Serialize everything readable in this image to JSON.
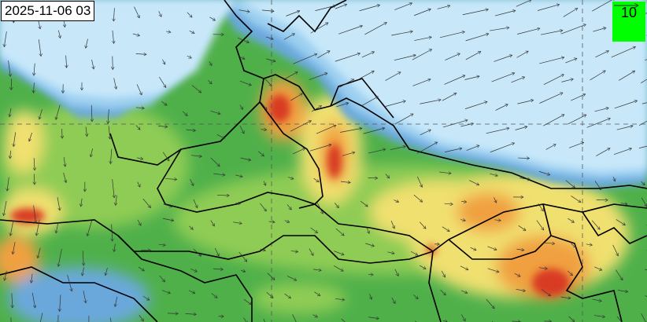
{
  "map": {
    "timestamp": "2025-11-06 03",
    "legend": {
      "reference_speed": "10",
      "color": "#00ff00"
    },
    "colors": {
      "pale_blue": "#c8e8fa",
      "light_blue": "#9ccff0",
      "mid_blue": "#6aa8dc",
      "green": "#4fb04a",
      "light_green": "#8fcc55",
      "yellow": "#f0e070",
      "orange": "#f0a040",
      "red": "#d83a20"
    }
  }
}
